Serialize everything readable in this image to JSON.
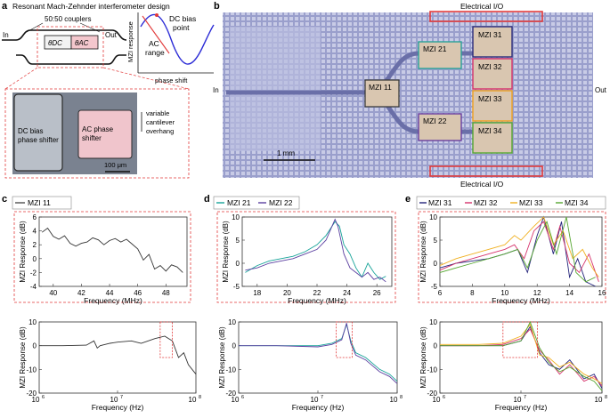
{
  "figure": {
    "panel_a": {
      "letter": "a",
      "title": "Resonant Mach-Zehnder interferometer design",
      "couplers_label": "50:50 couplers",
      "in_label": "In",
      "out_label": "Out",
      "theta_dc": "θDC",
      "theta_ac": "θAC",
      "response_ylabel": "MZI response",
      "response_xlabel": "phase shift",
      "dc_bias_label_1": "DC bias",
      "dc_bias_label_2": "point",
      "ac_range_label_1": "AC",
      "ac_range_label_2": "range",
      "inset_dc_label_1": "DC bias",
      "inset_dc_label_2": "phase shifter",
      "inset_ac_label_1": "AC phase",
      "inset_ac_label_2": "shifter",
      "cantilever_label_1": "variable",
      "cantilever_label_2": "cantilever",
      "cantilever_label_3": "overhang",
      "scalebar": "100 μm"
    },
    "panel_b": {
      "letter": "b",
      "io_top": "Electrical I/O",
      "io_bottom": "Electrical I/O",
      "in_label": "In",
      "out_label": "Out",
      "scalebar": "1 mm",
      "mzi_labels": [
        "MZI 11",
        "MZI 21",
        "MZI 22",
        "MZI 31",
        "MZI 32",
        "MZI 33",
        "MZI 34"
      ],
      "colors": {
        "mzi11": "#333333",
        "mzi21": "#2aa198",
        "mzi22": "#6a3fa0",
        "mzi31": "#2b2b7a",
        "mzi32": "#d6336c",
        "mzi33": "#f0a020",
        "mzi34": "#55a630",
        "io": "#e23a3a"
      }
    },
    "panel_c": {
      "letter": "c",
      "legend": [
        "MZI 11"
      ],
      "colors": [
        "#333333"
      ]
    },
    "panel_d": {
      "letter": "d",
      "legend": [
        "MZI 21",
        "MZI 22"
      ],
      "colors": [
        "#16a398",
        "#5b3fa0"
      ]
    },
    "panel_e": {
      "letter": "e",
      "legend": [
        "MZI 31",
        "MZI 32",
        "MZI 33",
        "MZI 34"
      ],
      "colors": [
        "#23237a",
        "#d6336c",
        "#f0b020",
        "#55a630"
      ]
    }
  },
  "chart_data": [
    {
      "id": "c-zoom",
      "type": "line",
      "xlabel": "Frequency (MHz)",
      "ylabel": "MZI Response (dB)",
      "xlim": [
        39,
        49.5
      ],
      "ylim": [
        -4,
        6
      ],
      "xticks": [
        40,
        42,
        44,
        46,
        48
      ],
      "yticks": [
        -4,
        -2,
        0,
        2,
        4,
        6
      ],
      "series": [
        {
          "name": "MZI 11",
          "x": [
            39.2,
            39.6,
            40.0,
            40.4,
            40.8,
            41.2,
            41.6,
            42.0,
            42.4,
            42.8,
            43.2,
            43.6,
            44.0,
            44.4,
            44.8,
            45.2,
            45.6,
            46.0,
            46.4,
            46.8,
            47.2,
            47.6,
            48.0,
            48.4,
            48.8,
            49.2
          ],
          "y": [
            3.8,
            4.4,
            3.2,
            2.8,
            3.3,
            2.2,
            1.8,
            2.2,
            2.4,
            3.0,
            2.7,
            2.0,
            2.6,
            2.9,
            2.4,
            2.8,
            2.1,
            1.4,
            -0.2,
            0.6,
            -1.5,
            -1.0,
            -1.8,
            -0.9,
            -1.2,
            -2.0
          ]
        }
      ]
    },
    {
      "id": "c-full",
      "type": "line",
      "xlabel": "Frequency (Hz)",
      "ylabel": "MZI Response (dB)",
      "xscale": "log",
      "xlim": [
        1000000,
        100000000
      ],
      "ylim": [
        -20,
        10
      ],
      "xticks": [
        "10^6",
        "10^7",
        "10^8"
      ],
      "yticks": [
        -20,
        -10,
        0,
        10
      ],
      "series": [
        {
          "name": "MZI 11",
          "x": [
            1000000.0,
            2000000.0,
            4000000.0,
            5000000.0,
            5500000.0,
            6000000.0,
            8000000.0,
            10000000.0,
            15000000.0,
            20000000.0,
            30000000.0,
            40000000.0,
            50000000.0,
            60000000.0,
            70000000.0,
            80000000.0,
            100000000.0
          ],
          "y": [
            0,
            0,
            0.2,
            2,
            -1,
            0,
            1,
            1.5,
            2,
            1,
            3,
            4,
            2,
            -5,
            -3,
            -8,
            -12
          ]
        }
      ]
    },
    {
      "id": "d-zoom",
      "type": "line",
      "xlabel": "Frequency (MHz)",
      "ylabel": "MZI Response (dB)",
      "xlim": [
        17,
        27
      ],
      "ylim": [
        -5,
        10
      ],
      "xticks": [
        18,
        20,
        22,
        24,
        26
      ],
      "yticks": [
        -5,
        0,
        5,
        10
      ],
      "series": [
        {
          "name": "MZI 21",
          "x": [
            17.2,
            18,
            18.8,
            19.6,
            20.4,
            21.2,
            22,
            22.6,
            23.2,
            23.5,
            23.8,
            24.2,
            24.6,
            25,
            25.4,
            25.8,
            26.2,
            26.6
          ],
          "y": [
            -2,
            -0.5,
            0.5,
            1,
            1.5,
            2.5,
            4,
            6,
            9,
            8,
            4,
            2,
            -1,
            -3,
            0,
            -2,
            -3.5,
            -2.8
          ]
        },
        {
          "name": "MZI 22",
          "x": [
            17.2,
            18,
            18.8,
            19.6,
            20.4,
            21.2,
            22,
            22.6,
            23.2,
            23.4,
            23.8,
            24.2,
            24.6,
            25,
            25.4,
            25.8,
            26.2,
            26.6
          ],
          "y": [
            -1.5,
            -1,
            0,
            0.5,
            1,
            2,
            3,
            5,
            9.5,
            8,
            2,
            -1,
            -2,
            -3,
            -2,
            -3.5,
            -3,
            -4
          ]
        }
      ]
    },
    {
      "id": "d-full",
      "type": "line",
      "xlabel": "Frequency (Hz)",
      "ylabel": "MZI Response (dB)",
      "xscale": "log",
      "xlim": [
        1000000,
        100000000
      ],
      "ylim": [
        -20,
        10
      ],
      "xticks": [
        "10^6",
        "10^7",
        "10^8"
      ],
      "yticks": [
        -20,
        -10,
        0,
        10
      ],
      "series": [
        {
          "name": "MZI 21",
          "x": [
            1000000.0,
            3000000.0,
            10000000.0,
            15000000.0,
            20000000.0,
            23000000.0,
            26000000.0,
            30000000.0,
            40000000.0,
            60000000.0,
            80000000.0,
            100000000.0
          ],
          "y": [
            0,
            0,
            0,
            1,
            3,
            9,
            2,
            -3,
            -5,
            -10,
            -12,
            -15
          ]
        },
        {
          "name": "MZI 22",
          "x": [
            1000000.0,
            3000000.0,
            10000000.0,
            15000000.0,
            20000000.0,
            23000000.0,
            26000000.0,
            30000000.0,
            40000000.0,
            60000000.0,
            80000000.0,
            100000000.0
          ],
          "y": [
            0,
            0,
            -0.5,
            0.5,
            2.5,
            9.5,
            1,
            -4,
            -6,
            -11,
            -13,
            -16
          ]
        }
      ]
    },
    {
      "id": "e-zoom",
      "type": "line",
      "xlabel": "Frequency (MHz)",
      "ylabel": "MZI Response (dB)",
      "xlim": [
        6,
        16
      ],
      "ylim": [
        -5,
        10
      ],
      "xticks": [
        6,
        8,
        10,
        12,
        14,
        16
      ],
      "yticks": [
        -5,
        0,
        5,
        10
      ],
      "series": [
        {
          "name": "MZI 31",
          "x": [
            6,
            7,
            8,
            9,
            10,
            10.8,
            11.4,
            12,
            12.4,
            13,
            13.5,
            14,
            14.5,
            15,
            15.6
          ],
          "y": [
            -1,
            0,
            0.5,
            1,
            2,
            3,
            -2,
            6,
            10,
            2,
            9,
            -3,
            1,
            -4,
            -5
          ]
        },
        {
          "name": "MZI 32",
          "x": [
            6,
            7,
            8,
            9,
            10,
            10.6,
            11.2,
            11.8,
            12.4,
            13,
            13.4,
            14,
            14.6,
            15.2,
            15.8
          ],
          "y": [
            -1.5,
            0,
            1,
            2,
            3,
            4,
            1,
            7,
            9,
            3,
            8,
            0,
            -2,
            2,
            -4
          ]
        },
        {
          "name": "MZI 33",
          "x": [
            6,
            7,
            8,
            9,
            10,
            10.6,
            11,
            11.8,
            12.4,
            13,
            13.6,
            14.2,
            14.8,
            15.4,
            15.8
          ],
          "y": [
            -0.5,
            1,
            2,
            3,
            4,
            6,
            5,
            8,
            10,
            4,
            7,
            1,
            3,
            -1,
            -3
          ]
        },
        {
          "name": "MZI 34",
          "x": [
            6,
            7,
            8,
            9,
            10,
            10.8,
            11.4,
            12,
            12.6,
            13.2,
            13.8,
            14.4,
            15,
            15.6
          ],
          "y": [
            -2,
            -1,
            0,
            1,
            2,
            3,
            -1,
            5,
            9,
            2,
            10,
            -2,
            -4,
            -3
          ]
        }
      ]
    },
    {
      "id": "e-full",
      "type": "line",
      "xlabel": "Frequency (Hz)",
      "ylabel": "MZI Response (dB)",
      "xscale": "log",
      "xlim": [
        1000000,
        100000000
      ],
      "ylim": [
        -20,
        10
      ],
      "xticks": [
        "10^6",
        "10^7",
        "10^8"
      ],
      "yticks": [
        -20,
        -10,
        0,
        10
      ],
      "series": [
        {
          "name": "MZI 31",
          "x": [
            1000000.0,
            3000000.0,
            6000000.0,
            10000000.0,
            13000000.0,
            17000000.0,
            22000000.0,
            30000000.0,
            40000000.0,
            60000000.0,
            80000000.0,
            100000000.0
          ],
          "y": [
            0,
            0,
            0,
            2,
            8,
            -3,
            -8,
            -10,
            -6,
            -14,
            -12,
            -18
          ]
        },
        {
          "name": "MZI 32",
          "x": [
            1000000.0,
            3000000.0,
            6000000.0,
            10000000.0,
            13000000.0,
            17000000.0,
            22000000.0,
            30000000.0,
            40000000.0,
            60000000.0,
            80000000.0,
            100000000.0
          ],
          "y": [
            0,
            0,
            0.5,
            3,
            7,
            -2,
            -6,
            -12,
            -8,
            -15,
            -13,
            -17
          ]
        },
        {
          "name": "MZI 33",
          "x": [
            1000000.0,
            3000000.0,
            6000000.0,
            10000000.0,
            13000000.0,
            17000000.0,
            22000000.0,
            30000000.0,
            40000000.0,
            60000000.0,
            80000000.0,
            100000000.0
          ],
          "y": [
            0.5,
            0.5,
            1,
            4,
            9,
            -4,
            -5,
            -9,
            -7,
            -12,
            -14,
            -16
          ]
        },
        {
          "name": "MZI 34",
          "x": [
            1000000.0,
            3000000.0,
            6000000.0,
            10000000.0,
            13000000.0,
            17000000.0,
            22000000.0,
            30000000.0,
            40000000.0,
            60000000.0,
            80000000.0,
            100000000.0
          ],
          "y": [
            0,
            0,
            0,
            2,
            10,
            -1,
            -7,
            -11,
            -9,
            -13,
            -15,
            -19
          ]
        }
      ]
    }
  ]
}
